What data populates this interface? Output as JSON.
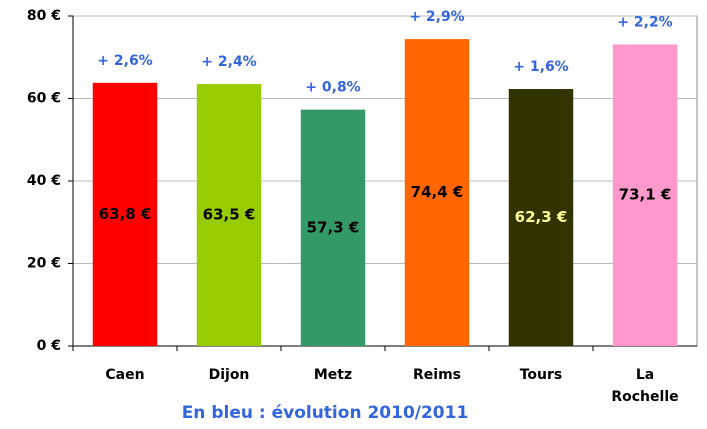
{
  "chart_data": {
    "type": "bar",
    "categories": [
      "Caen",
      "Dijon",
      "Metz",
      "Reims",
      "Tours",
      "La Rochelle"
    ],
    "values": [
      63.8,
      63.5,
      57.3,
      74.4,
      62.3,
      73.1
    ],
    "value_labels": [
      "63,8 €",
      "63,5 €",
      "57,3 €",
      "74,4 €",
      "62,3 €",
      "73,1 €"
    ],
    "colors": [
      "#ff0000",
      "#99cc00",
      "#339966",
      "#ff6600",
      "#333300",
      "#ff99cc"
    ],
    "value_label_colors": [
      "#000000",
      "#000000",
      "#000000",
      "#000000",
      "#ffff99",
      "#000000"
    ],
    "annotations": [
      "+ 2,6%",
      "+ 2,4%",
      "+ 0,8%",
      "+ 2,9%",
      "+ 1,6%",
      "+ 2,2%"
    ],
    "annotation_color": "#3366dd",
    "xlabel": "En bleu : évolution 2010/2011",
    "ylim": [
      0,
      80
    ],
    "yticks": [
      {
        "value": 0,
        "label": "0 €"
      },
      {
        "value": 20,
        "label": "20 €"
      },
      {
        "value": 40,
        "label": "40 €"
      },
      {
        "value": 60,
        "label": "60 €"
      },
      {
        "value": 80,
        "label": "80 €"
      }
    ],
    "grid": true
  }
}
